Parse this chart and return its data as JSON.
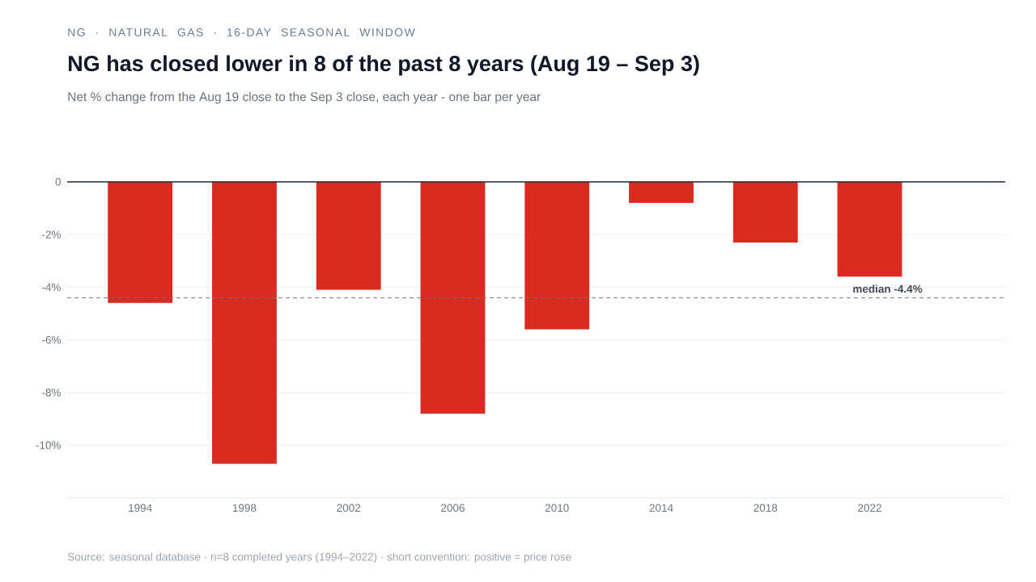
{
  "chart_data": {
    "type": "bar",
    "title": "NG has closed lower in 8 of the past 8 years (Aug 19 – Sep 3)",
    "subtitle": "Net % change from the Aug 19 close to the Sep 3 close, each year - one bar per year",
    "annotations": [
      "NG · NATURAL GAS · 16-DAY SEASONAL WINDOW",
      "Source: seasonal database · n=8 completed years (1994–2022) · short convention: positive = price rose"
    ],
    "categories": [
      "1994",
      "1998",
      "2002",
      "2006",
      "2010",
      "2014",
      "2018",
      "2022"
    ],
    "values": [
      -4.6,
      -10.7,
      -4.1,
      -8.8,
      -5.6,
      -0.8,
      -2.3,
      -3.6
    ],
    "color": "#d92b20",
    "ylim": [
      -12,
      0
    ],
    "yticks": [
      {
        "value": 0,
        "label": "0"
      },
      {
        "value": -2,
        "label": "-2%"
      },
      {
        "value": -4,
        "label": "-4%"
      },
      {
        "value": -6,
        "label": "-6%"
      },
      {
        "value": -8,
        "label": "-8%"
      },
      {
        "value": -10,
        "label": "-10%"
      }
    ],
    "grid": "y",
    "ref_lines": [
      {
        "axis": "y",
        "value": -4.4,
        "label": "median -4.4%",
        "color": "#6b7280",
        "line_style": "dashed"
      }
    ]
  }
}
